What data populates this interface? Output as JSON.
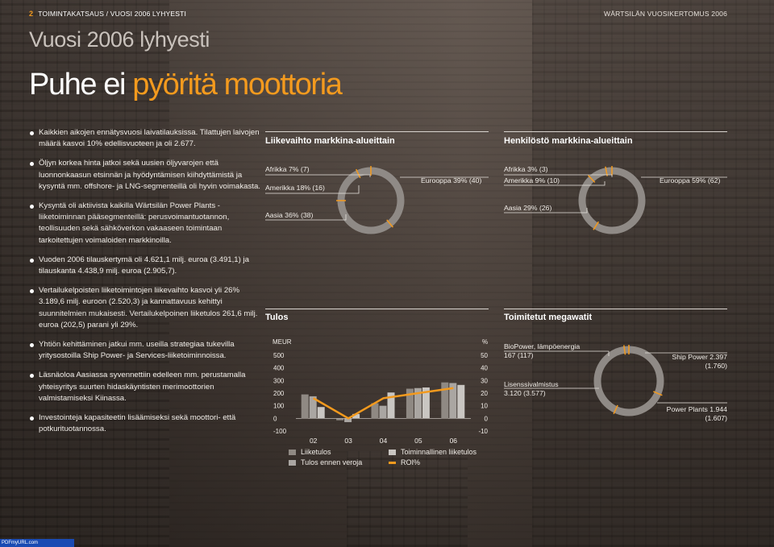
{
  "header": {
    "page_number": "2",
    "section": "TOIMINTAKATSAUS / VUOSI 2006 LYHYESTI",
    "report": "WÄRTSILÄN VUOSIKERTOMUS 2006"
  },
  "title": {
    "main": "Vuosi 2006 lyhyesti",
    "headline_white": "Puhe ei ",
    "headline_orange": "pyöritä moottoria"
  },
  "bullets": [
    "Kaikkien aikojen ennätysvuosi laivatilauksissa. Tilattujen laivojen määrä kasvoi 10% edellisvuoteen ja oli 2.677.",
    "Öljyn korkea hinta jatkoi sekä uusien öljyvarojen että luonnonkaasun etsinnän ja hyödyntämisen kiihdyttämistä ja kysyntä mm. offshore- ja LNG-segmenteillä oli hyvin voimakasta.",
    "Kysyntä oli aktiivista kaikilla Wärtsilän Power Plants -liiketoiminnan pääsegmenteillä: perusvoimantuotannon, teollisuuden sekä sähköverkon vakaaseen toimintaan tarkoitettujen voimaloiden markkinoilla.",
    "Vuoden 2006 tilauskertymä oli 4.621,1 milj. euroa (3.491,1) ja tilauskanta 4.438,9 milj. euroa (2.905,7).",
    "Vertailukelpoisten liiketoimintojen liikevaihto kasvoi yli 26% 3.189,6 milj. euroon (2.520,3) ja kannattavuus kehittyi suunnitelmien mukaisesti. Vertailukelpoinen liiketulos 261,6 milj. euroa (202,5) parani yli 29%.",
    "Yhtiön kehittäminen jatkui mm. useilla strategiaa tukevilla yritysostoilla Ship Power- ja Services-liiketoiminnoissa.",
    "Läsnäoloa Aasiassa syvennettiin edelleen mm. perustamalla yhteisyritys suurten hidaskäyntisten merimoottorien valmistamiseksi Kiinassa.",
    "Investointeja kapasiteetin lisäämiseksi sekä moottori- että potkurituotannossa."
  ],
  "charts": {
    "revenue_title": "Liikevaihto markkina-alueittain",
    "staff_title": "Henkilöstö markkina-alueittain",
    "result_title": "Tulos",
    "mw_title": "Toimitetut megawatit"
  },
  "chart_data": [
    {
      "type": "pie",
      "title": "Liikevaihto markkina-alueittain",
      "labels": [
        "Eurooppa 39% (40)",
        "Aasia 36% (38)",
        "Amerikka 18% (16)",
        "Afrikka 7% (7)"
      ],
      "values": [
        39,
        36,
        18,
        7
      ]
    },
    {
      "type": "pie",
      "title": "Henkilöstö markkina-alueittain",
      "labels": [
        "Eurooppa 59% (62)",
        "Aasia 29% (26)",
        "Amerikka 9% (10)",
        "Afrikka 3% (3)"
      ],
      "values": [
        59,
        29,
        9,
        3
      ]
    },
    {
      "type": "bar",
      "title": "Tulos",
      "ylabel": "MEUR",
      "y2label": "%",
      "categories": [
        "02",
        "03",
        "04",
        "05",
        "06"
      ],
      "ylim": [
        -100,
        500
      ],
      "y2lim": [
        -10,
        50
      ],
      "yticks": [
        "500",
        "400",
        "300",
        "200",
        "100",
        "0",
        "-100"
      ],
      "y2ticks": [
        "50",
        "40",
        "30",
        "20",
        "10",
        "0",
        "-10"
      ],
      "series": [
        {
          "name": "Liiketulos",
          "values": [
            190,
            -15,
            120,
            235,
            285
          ]
        },
        {
          "name": "Tulos ennen veroja",
          "values": [
            175,
            -30,
            100,
            240,
            280
          ]
        },
        {
          "name": "Toiminnallinen liiketulos",
          "values": [
            90,
            35,
            205,
            245,
            265
          ]
        },
        {
          "name": "ROI%",
          "axis": "y2",
          "values": [
            16,
            0,
            16,
            20,
            24
          ]
        }
      ],
      "colors": [
        "#8f8983",
        "#aaa6a2",
        "#c9c6c2",
        "#f39a1e"
      ]
    },
    {
      "type": "pie",
      "title": "Toimitetut megawatit",
      "labels": [
        "Ship Power 2.397 (1.760)",
        "Power Plants 1.944 (1.607)",
        "Lisenssivalmistus 3.120 (3.577)",
        "BioPower, lämpöenergia 167 (117)"
      ],
      "values": [
        2397,
        1944,
        3120,
        167
      ]
    }
  ],
  "legend": {
    "liiketulos": "Liiketulos",
    "tulos_ennen_veroja": "Tulos ennen veroja",
    "toiminnallinen": "Toiminnallinen liiketulos",
    "roi": "ROI%"
  },
  "mw_labels": {
    "bio1": "BioPower, lämpöenergia",
    "bio2": "167 (117)",
    "ship1": "Ship Power 2.397",
    "ship2": "(1.760)",
    "lic1": "Lisenssivalmistus",
    "lic2": "3.120 (3.577)",
    "pp1": "Power Plants 1.944",
    "pp2": "(1.607)"
  },
  "axis": {
    "meur": "MEUR",
    "pct": "%"
  },
  "footer": {
    "text": "PDFmyURL.com"
  },
  "colors": {
    "accent": "#f39a1e",
    "ring": "#8f8a86"
  }
}
